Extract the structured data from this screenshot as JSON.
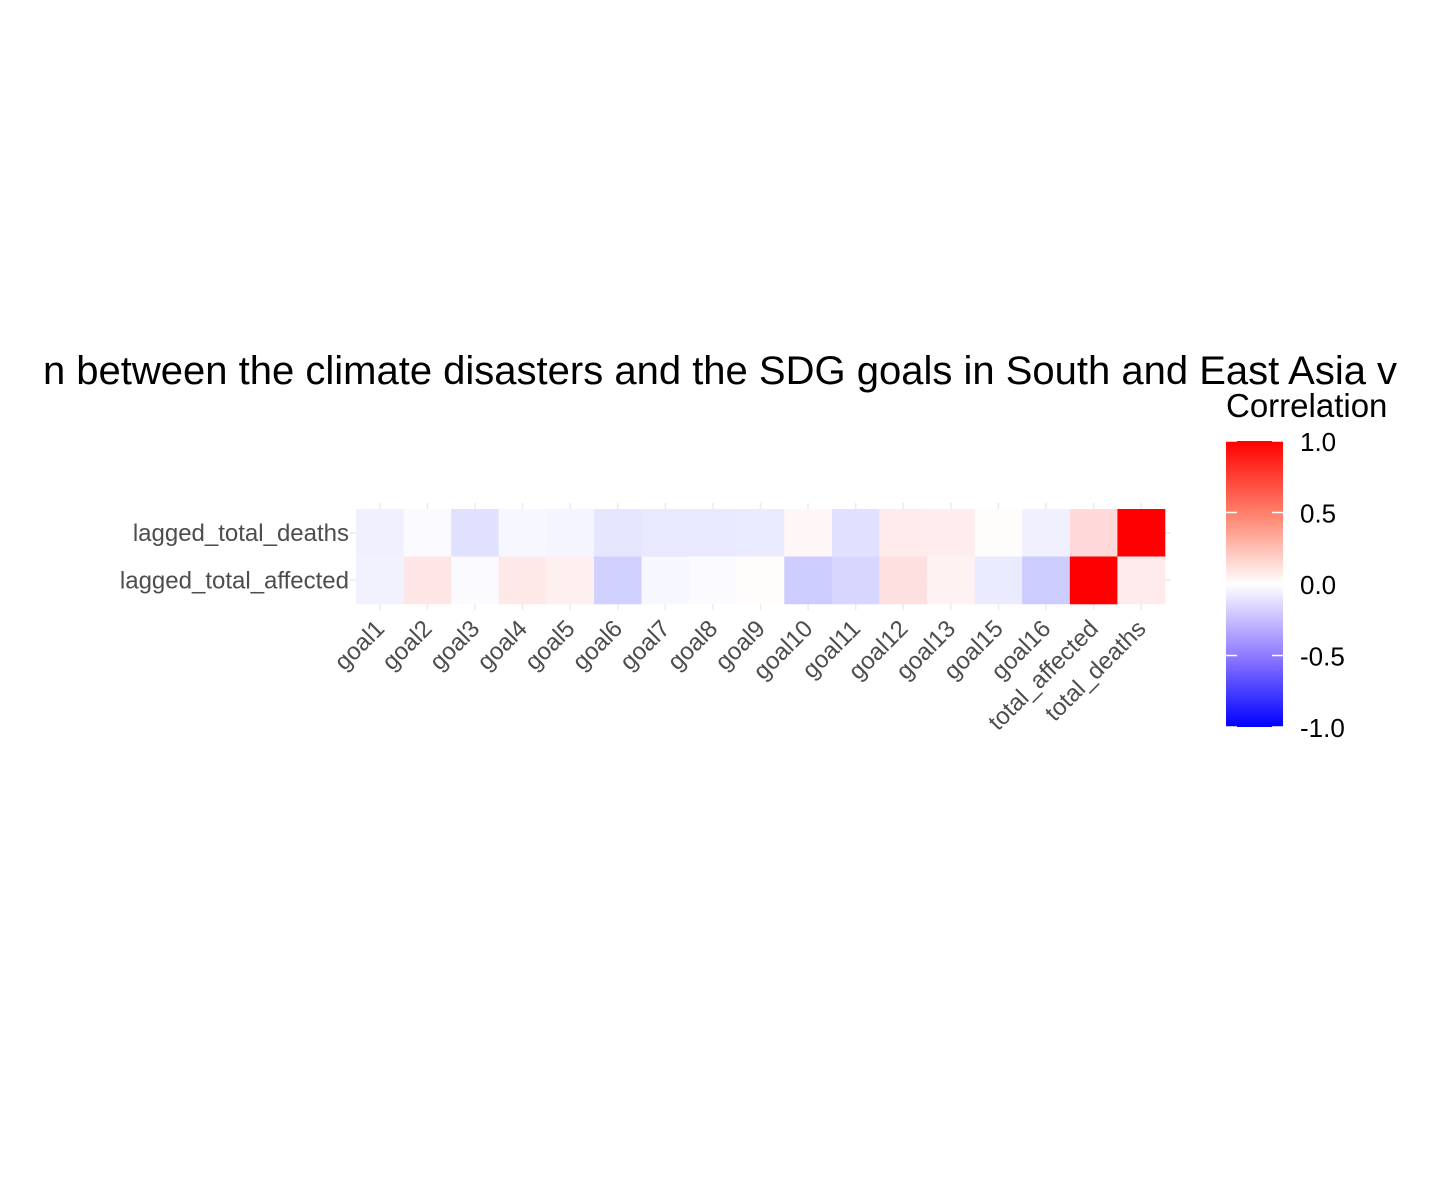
{
  "chart_data": {
    "type": "heatmap",
    "title": "n between the climate disasters and the SDG goals in South and East Asia v",
    "x_categories": [
      "goal1",
      "goal2",
      "goal3",
      "goal4",
      "goal5",
      "goal6",
      "goal7",
      "goal8",
      "goal9",
      "goal10",
      "goal11",
      "goal12",
      "goal13",
      "goal15",
      "goal16",
      "total_affected",
      "total_deaths"
    ],
    "y_categories": [
      "lagged_total_deaths",
      "lagged_total_affected"
    ],
    "values": [
      [
        -0.06,
        -0.02,
        -0.12,
        -0.03,
        -0.04,
        -0.1,
        -0.09,
        -0.09,
        -0.08,
        0.03,
        -0.12,
        0.08,
        0.07,
        0.01,
        -0.06,
        0.15,
        1.0
      ],
      [
        -0.05,
        0.1,
        -0.02,
        0.09,
        0.06,
        -0.18,
        -0.03,
        -0.02,
        0.01,
        -0.2,
        -0.16,
        0.12,
        0.05,
        -0.08,
        -0.2,
        1.0,
        0.08
      ]
    ],
    "color_scale": {
      "low": "#0000ff",
      "mid": "#ffffff",
      "high": "#ff0000",
      "limits": [
        -1,
        1
      ]
    },
    "legend": {
      "title": "Correlation",
      "ticks": [
        1.0,
        0.5,
        0.0,
        -0.5,
        -1.0
      ],
      "tick_labels": [
        "1.0",
        "0.5",
        "0.0",
        "-0.5",
        "-1.0"
      ],
      "placement": "right"
    },
    "grid": true,
    "xlabel": "",
    "ylabel": ""
  }
}
